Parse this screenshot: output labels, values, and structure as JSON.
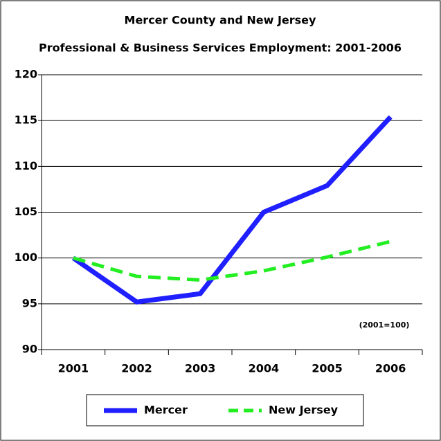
{
  "chart_data": {
    "type": "line",
    "title": "Mercer County and New Jersey",
    "subtitle": "Professional & Business Services Employment: 2001-2006",
    "annotation": "(2001=100)",
    "categories": [
      "2001",
      "2002",
      "2003",
      "2004",
      "2005",
      "2006"
    ],
    "series": [
      {
        "name": "Mercer",
        "color": "#1f1fff",
        "dash": "solid",
        "values": [
          100,
          95.2,
          96.1,
          105,
          107.9,
          115.4
        ]
      },
      {
        "name": "New Jersey",
        "color": "#22ee22",
        "dash": "dashed",
        "values": [
          100,
          98,
          97.6,
          98.6,
          100.1,
          101.8
        ]
      }
    ],
    "ylim": [
      90,
      120
    ],
    "yticks": [
      90,
      95,
      100,
      105,
      110,
      115,
      120
    ],
    "grid": true
  }
}
